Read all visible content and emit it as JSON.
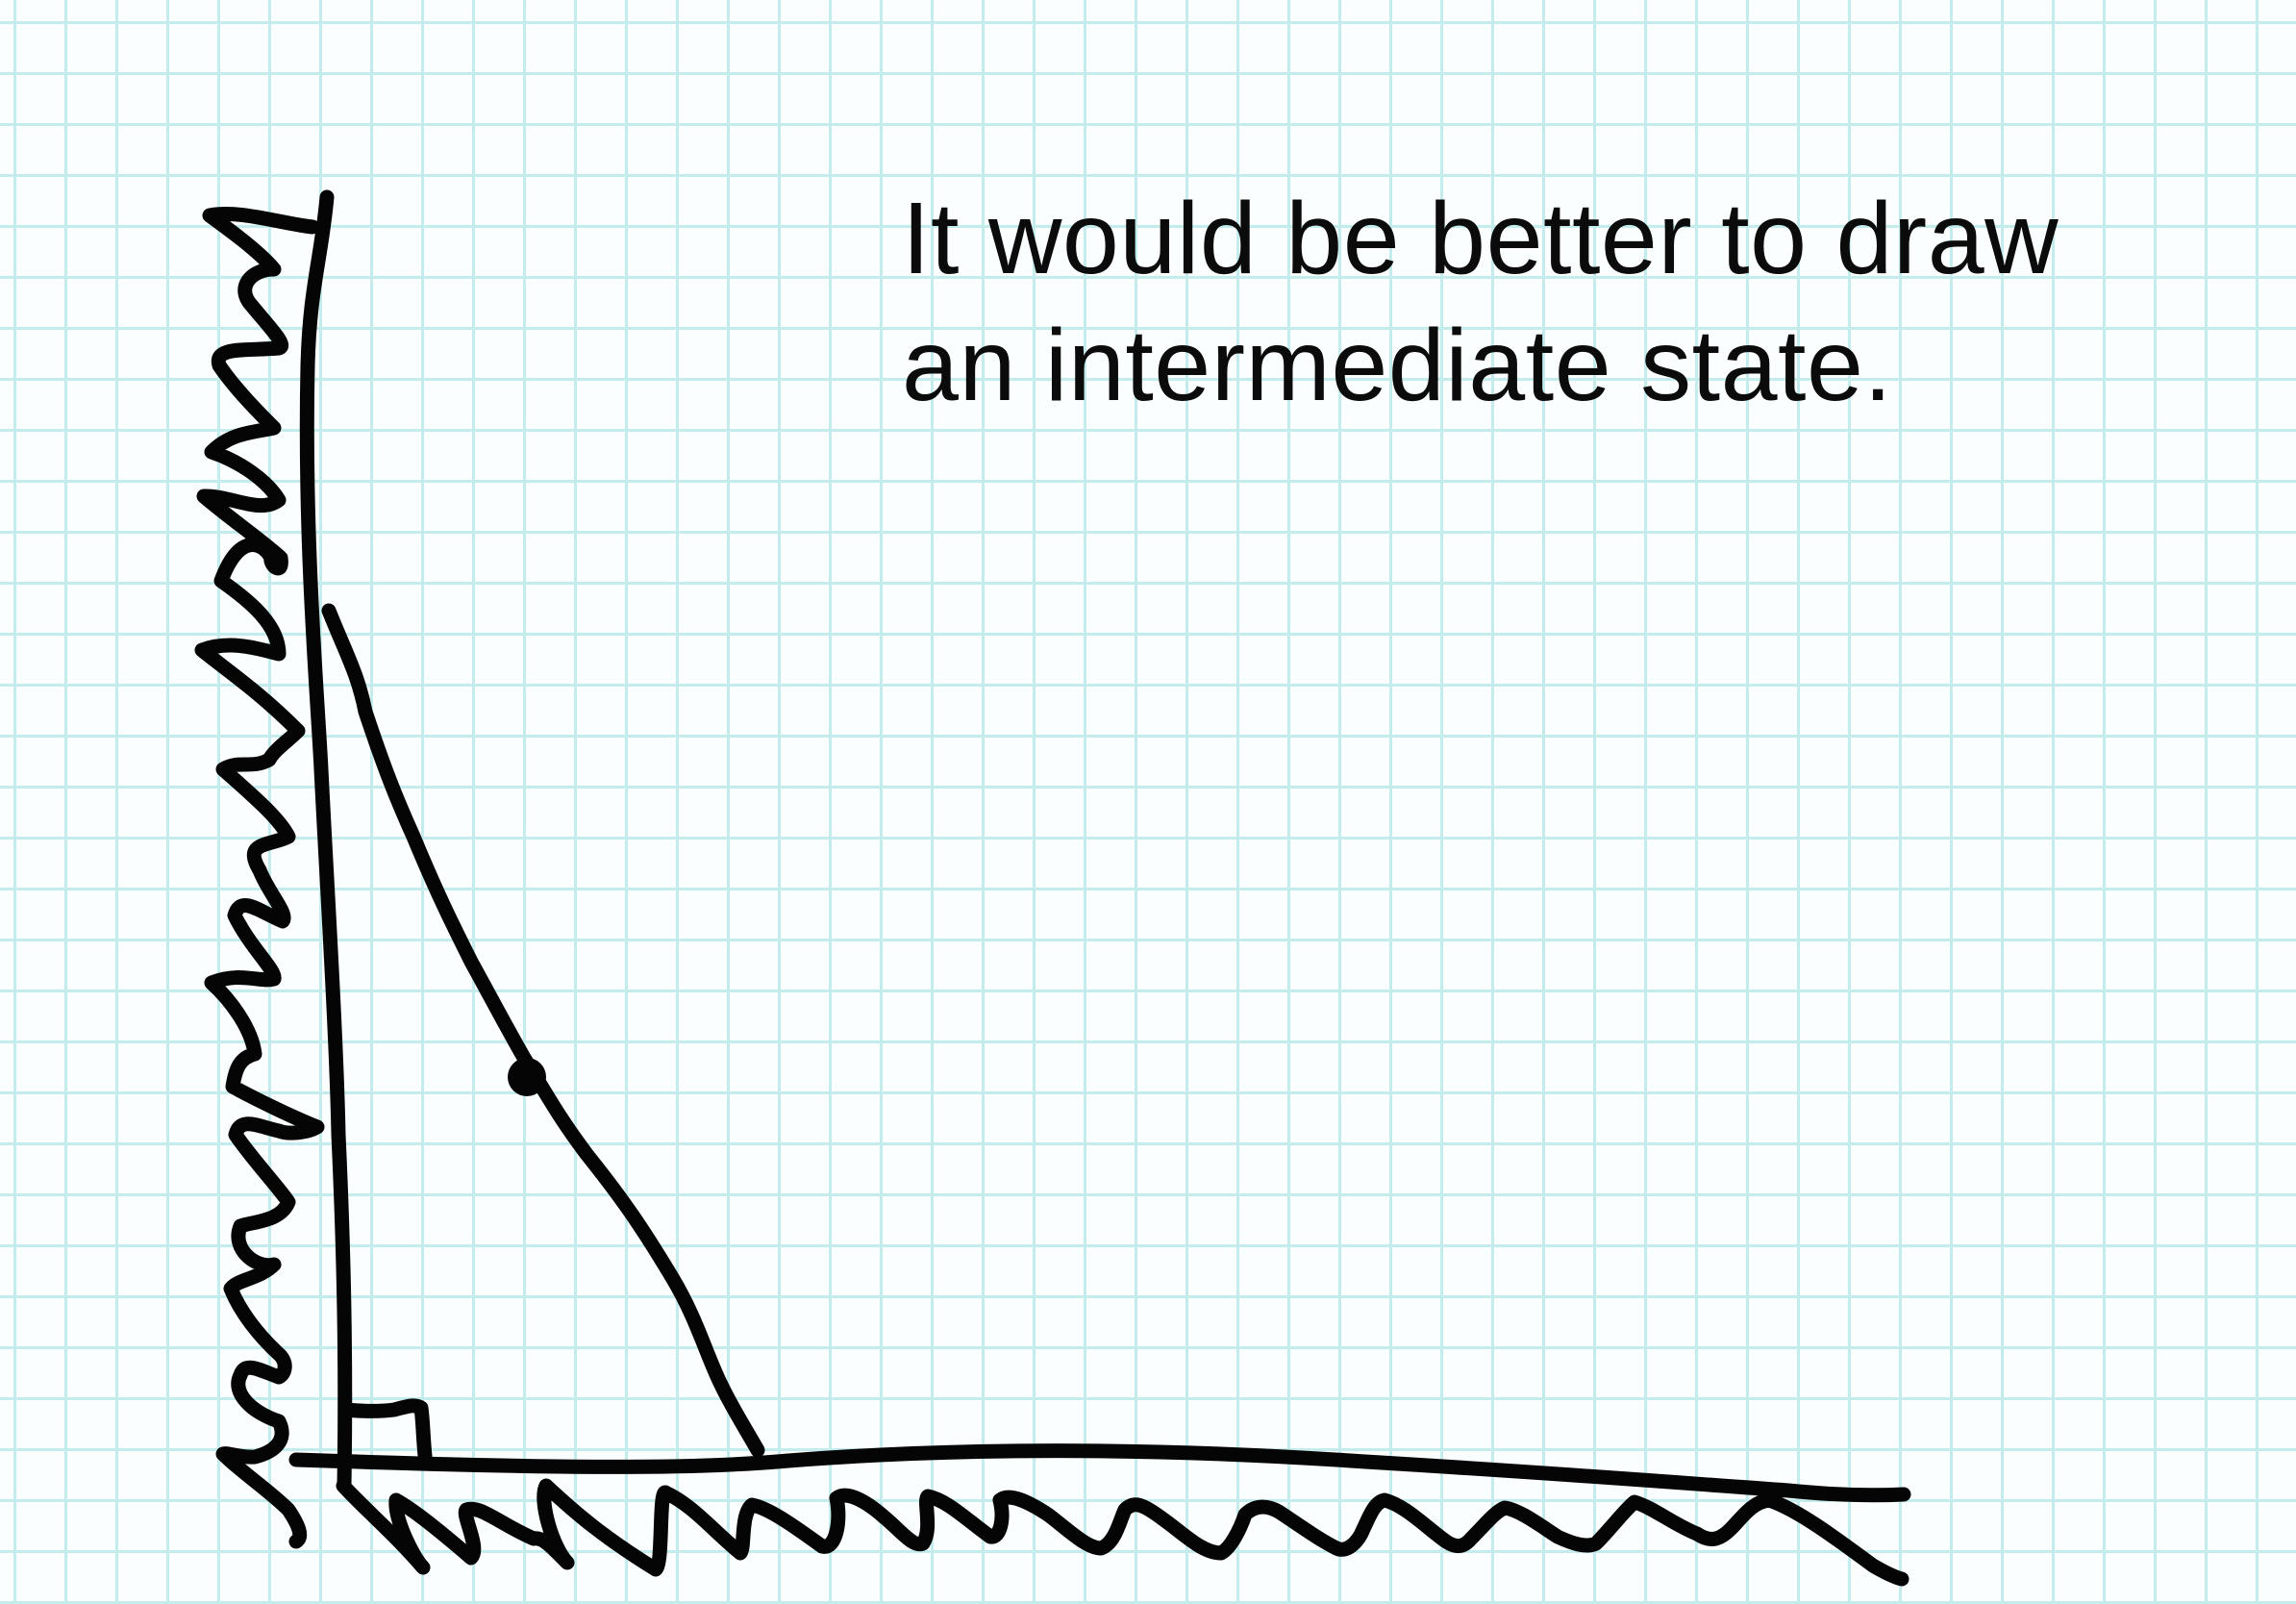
{
  "caption": {
    "line1": "It would be better to draw",
    "line2": "an intermediate state."
  },
  "colors": {
    "grid_line": "#c5ecec",
    "paper": "#fbfefe",
    "ink": "#050505"
  }
}
